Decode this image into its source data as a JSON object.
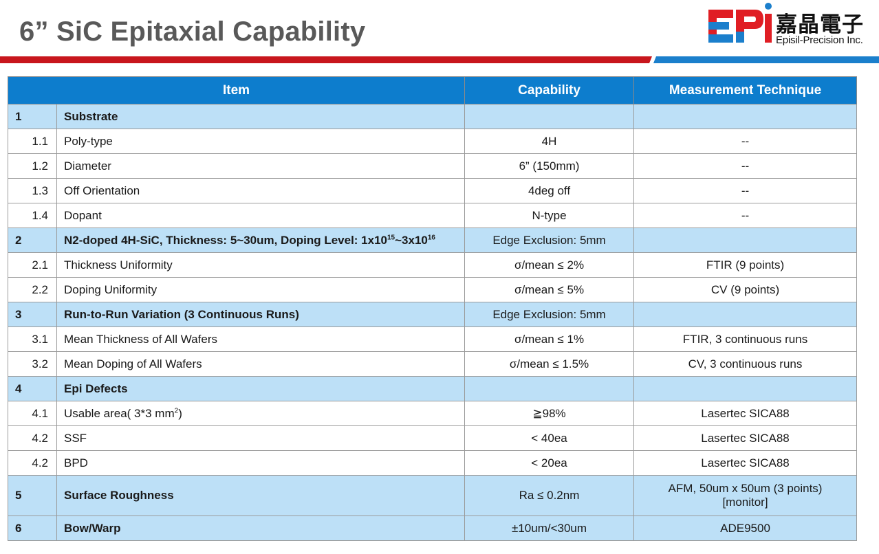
{
  "header": {
    "title": "6” SiC Epitaxial Capability",
    "logo_cn": "嘉晶電子",
    "logo_en": "Episil-Precision Inc.",
    "logo_mark": "EPI",
    "colors": {
      "brand_red": "#e01e24",
      "brand_blue": "#1b7fcc"
    }
  },
  "table": {
    "headers": {
      "item": "Item",
      "capability": "Capability",
      "measurement": "Measurement Technique"
    },
    "header_color": "#0d7dcd",
    "section_color": "#bde0f7",
    "rows": {
      "r1": {
        "num": "1",
        "item": "Substrate",
        "capability": "",
        "measurement": ""
      },
      "r1_1": {
        "num": "1.1",
        "item": "Poly-type",
        "capability": "4H",
        "measurement": "--"
      },
      "r1_2": {
        "num": "1.2",
        "item": "Diameter",
        "capability": "6” (150mm)",
        "measurement": "--"
      },
      "r1_3": {
        "num": "1.3",
        "item": "Off Orientation",
        "capability": "4deg off",
        "measurement": "--"
      },
      "r1_4": {
        "num": "1.4",
        "item": "Dopant",
        "capability": "N-type",
        "measurement": "--"
      },
      "r2": {
        "num": "2",
        "item_a": "N2-doped 4H-SiC, Thickness: 5~30um, Doping Level: 1x10",
        "item_sup1": "15",
        "item_b": "~3x10",
        "item_sup2": "16",
        "capability": "Edge Exclusion: 5mm",
        "measurement": ""
      },
      "r2_1": {
        "num": "2.1",
        "item": "Thickness Uniformity",
        "capability": "σ/mean ≤ 2%",
        "measurement": "FTIR (9 points)"
      },
      "r2_2": {
        "num": "2.2",
        "item": "Doping Uniformity",
        "capability": "σ/mean ≤ 5%",
        "measurement": "CV (9 points)"
      },
      "r3": {
        "num": "3",
        "item": "Run-to-Run Variation (3 Continuous Runs)",
        "capability": "Edge Exclusion: 5mm",
        "measurement": ""
      },
      "r3_1": {
        "num": "3.1",
        "item": "Mean Thickness of All Wafers",
        "capability": "σ/mean ≤ 1%",
        "measurement": "FTIR, 3 continuous runs"
      },
      "r3_2": {
        "num": "3.2",
        "item": "Mean Doping of All Wafers",
        "capability": "σ/mean ≤ 1.5%",
        "measurement": "CV, 3 continuous runs"
      },
      "r4": {
        "num": "4",
        "item": "Epi Defects",
        "capability": "",
        "measurement": ""
      },
      "r4_1": {
        "num": "4.1",
        "item_a": "Usable area( 3*3 mm",
        "item_sup": "2",
        "item_b": ")",
        "capability": "≧98%",
        "measurement": "Lasertec SICA88"
      },
      "r4_2": {
        "num": "4.2",
        "item": "SSF",
        "capability": "< 40ea",
        "measurement": "Lasertec SICA88"
      },
      "r4_3": {
        "num": "4.2",
        "item": "BPD",
        "capability": "< 20ea",
        "measurement": "Lasertec SICA88"
      },
      "r5": {
        "num": "5",
        "item": "Surface Roughness",
        "capability": "Ra ≤ 0.2nm",
        "measurement_line1": "AFM, 50um x 50um (3 points)",
        "measurement_line2": "[monitor]"
      },
      "r6": {
        "num": "6",
        "item": "Bow/Warp",
        "capability": "±10um/<30um",
        "measurement": "ADE9500"
      }
    }
  }
}
